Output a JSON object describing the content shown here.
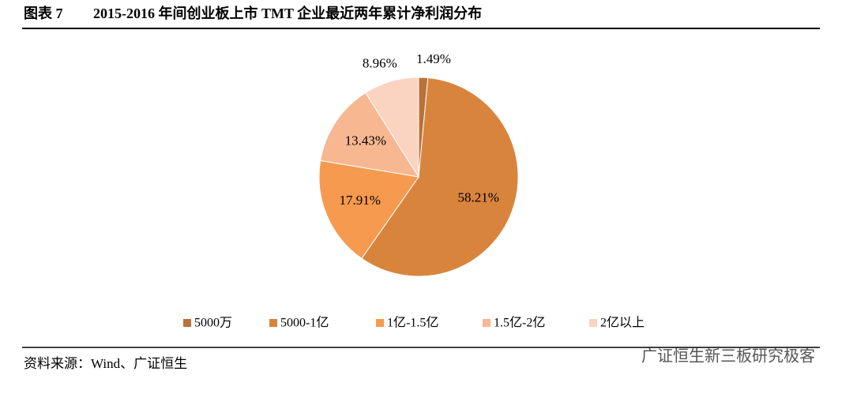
{
  "header": {
    "label": "图表 7",
    "title": "2015-2016 年间创业板上市 TMT 企业最近两年累计净利润分布"
  },
  "chart_data": {
    "type": "pie",
    "categories": [
      "5000万",
      "5000-1亿",
      "1亿-1.5亿",
      "1.5亿-2亿",
      "2亿以上"
    ],
    "values": [
      1.49,
      58.21,
      17.91,
      13.43,
      8.96
    ],
    "value_labels": [
      "1.49%",
      "58.21%",
      "17.91%",
      "13.43%",
      "8.96%"
    ],
    "colors": [
      "#b8723a",
      "#d9843d",
      "#f59a4e",
      "#f7b791",
      "#fad3c1"
    ],
    "legend": "bottom"
  },
  "footer": {
    "source": "资料来源：Wind、广证恒生",
    "watermark": "广证恒生新三板研究极客"
  }
}
